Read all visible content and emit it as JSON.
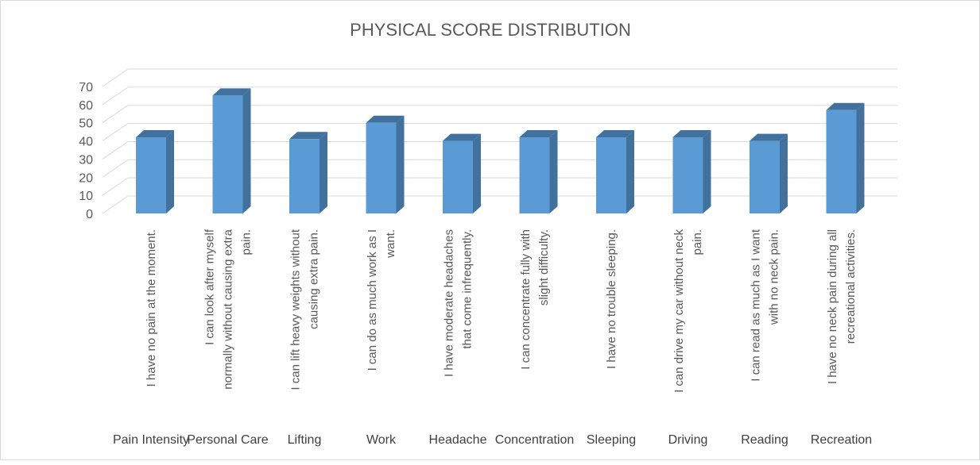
{
  "chart_data": {
    "type": "bar",
    "title": "PHYSICAL SCORE DISTRIBUTION",
    "xlabel": "",
    "ylabel": "",
    "ylim": [
      0,
      70
    ],
    "yticks": [
      0,
      10,
      20,
      30,
      40,
      50,
      60,
      70
    ],
    "grid": true,
    "legend": "none",
    "bar_color": "#5b9bd5",
    "bar_side_color": "#41719c",
    "bar_top_color": "#41719c",
    "grid_color": "#d9d9d9",
    "categories": [
      "Pain Intensity",
      "Personal Care",
      "Lifting",
      "Work",
      "Headache",
      "Concentration",
      "Sleeping",
      "Driving",
      "Reading",
      "Recreation"
    ],
    "descriptions": [
      [
        "I have no pain at the moment."
      ],
      [
        "I can look after myself",
        "normally without causing extra",
        "pain."
      ],
      [
        "I can lift heavy weights without",
        "causing extra pain."
      ],
      [
        "I can do as much work as I",
        "want."
      ],
      [
        "I have moderate headaches",
        "that come infrequently."
      ],
      [
        "I can concentrate fully with",
        "slight difficulty."
      ],
      [
        "I have no trouble sleeping."
      ],
      [
        "I can drive my car without neck",
        "pain."
      ],
      [
        "I can read as much as I want",
        "with no neck pain."
      ],
      [
        "I have no neck pain during all",
        "recreational activities."
      ]
    ],
    "values": [
      42,
      65,
      41,
      50,
      40,
      42,
      42,
      42,
      40,
      57
    ]
  }
}
